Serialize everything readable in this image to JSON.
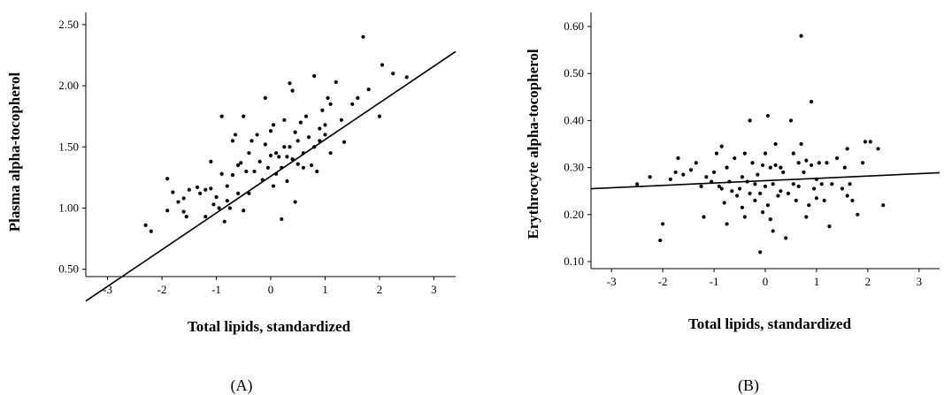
{
  "chart_data": [
    {
      "type": "scatter",
      "panel_label": "(A)",
      "xlabel": "Total lipids, standardized",
      "ylabel": "Plasma alpha-tocopherol",
      "xlim": [
        -3.4,
        3.4
      ],
      "ylim": [
        0.44,
        2.6
      ],
      "xticks": [
        -3,
        -2,
        -1,
        0,
        1,
        2,
        3
      ],
      "xtick_labels": [
        "-3",
        "-2",
        "-1",
        "0",
        "1",
        "2",
        "3"
      ],
      "yticks": [
        0.5,
        1.0,
        1.5,
        2.0,
        2.5
      ],
      "ytick_labels": [
        "0.50",
        "1.00",
        "1.50",
        "2.00",
        "2.50"
      ],
      "grid": false,
      "fit_line": {
        "slope": 0.3,
        "intercept": 1.26
      },
      "points": [
        [
          -2.3,
          0.86
        ],
        [
          -2.2,
          0.81
        ],
        [
          -1.9,
          0.98
        ],
        [
          -1.9,
          1.24
        ],
        [
          -1.8,
          1.13
        ],
        [
          -1.7,
          1.05
        ],
        [
          -1.6,
          0.97
        ],
        [
          -1.6,
          1.08
        ],
        [
          -1.55,
          0.93
        ],
        [
          -1.5,
          1.15
        ],
        [
          -1.35,
          1.17
        ],
        [
          -1.3,
          1.12
        ],
        [
          -1.2,
          1.15
        ],
        [
          -1.2,
          0.93
        ],
        [
          -1.1,
          1.38
        ],
        [
          -1.1,
          1.16
        ],
        [
          -1.05,
          1.03
        ],
        [
          -1.0,
          1.09
        ],
        [
          -0.95,
          1.0
        ],
        [
          -0.9,
          1.75
        ],
        [
          -0.9,
          1.28
        ],
        [
          -0.85,
          0.89
        ],
        [
          -0.8,
          1.06
        ],
        [
          -0.8,
          1.18
        ],
        [
          -0.75,
          1.0
        ],
        [
          -0.7,
          1.55
        ],
        [
          -0.7,
          1.27
        ],
        [
          -0.65,
          1.6
        ],
        [
          -0.6,
          1.12
        ],
        [
          -0.6,
          1.35
        ],
        [
          -0.55,
          1.37
        ],
        [
          -0.5,
          0.98
        ],
        [
          -0.5,
          1.75
        ],
        [
          -0.45,
          1.3
        ],
        [
          -0.4,
          1.45
        ],
        [
          -0.4,
          1.12
        ],
        [
          -0.35,
          1.55
        ],
        [
          -0.3,
          1.3
        ],
        [
          -0.25,
          1.6
        ],
        [
          -0.2,
          1.38
        ],
        [
          -0.15,
          1.23
        ],
        [
          -0.1,
          1.9
        ],
        [
          -0.1,
          1.52
        ],
        [
          -0.05,
          1.33
        ],
        [
          0.0,
          1.63
        ],
        [
          0.0,
          1.43
        ],
        [
          0.05,
          1.18
        ],
        [
          0.05,
          1.68
        ],
        [
          0.1,
          1.45
        ],
        [
          0.1,
          1.28
        ],
        [
          0.15,
          1.42
        ],
        [
          0.2,
          1.33
        ],
        [
          0.2,
          0.91
        ],
        [
          0.25,
          1.5
        ],
        [
          0.25,
          1.72
        ],
        [
          0.3,
          1.22
        ],
        [
          0.3,
          1.42
        ],
        [
          0.35,
          2.02
        ],
        [
          0.35,
          1.5
        ],
        [
          0.4,
          1.96
        ],
        [
          0.4,
          1.4
        ],
        [
          0.45,
          1.05
        ],
        [
          0.45,
          1.62
        ],
        [
          0.5,
          1.36
        ],
        [
          0.5,
          1.55
        ],
        [
          0.55,
          1.7
        ],
        [
          0.6,
          1.45
        ],
        [
          0.6,
          1.33
        ],
        [
          0.65,
          1.75
        ],
        [
          0.7,
          1.58
        ],
        [
          0.75,
          1.35
        ],
        [
          0.8,
          1.5
        ],
        [
          0.8,
          2.08
        ],
        [
          0.85,
          1.3
        ],
        [
          0.9,
          1.65
        ],
        [
          0.9,
          1.55
        ],
        [
          0.95,
          1.8
        ],
        [
          1.0,
          1.68
        ],
        [
          1.0,
          1.6
        ],
        [
          1.05,
          1.9
        ],
        [
          1.1,
          1.45
        ],
        [
          1.1,
          1.85
        ],
        [
          1.2,
          2.03
        ],
        [
          1.3,
          1.72
        ],
        [
          1.35,
          1.54
        ],
        [
          1.5,
          1.85
        ],
        [
          1.6,
          1.9
        ],
        [
          1.7,
          2.4
        ],
        [
          1.8,
          1.97
        ],
        [
          2.0,
          1.75
        ],
        [
          2.05,
          2.17
        ],
        [
          2.25,
          2.1
        ],
        [
          2.5,
          2.07
        ]
      ]
    },
    {
      "type": "scatter",
      "panel_label": "(B)",
      "xlabel": "Total lipids, standardized",
      "ylabel": "Erythrocyte alpha-tocopherol",
      "xlim": [
        -3.4,
        3.4
      ],
      "ylim": [
        0.085,
        0.63
      ],
      "xticks": [
        -3,
        -2,
        -1,
        0,
        1,
        2,
        3
      ],
      "xtick_labels": [
        "-3",
        "-2",
        "-1",
        "0",
        "1",
        "2",
        "3"
      ],
      "yticks": [
        0.1,
        0.2,
        0.3,
        0.4,
        0.5,
        0.6
      ],
      "ytick_labels": [
        "0.10",
        "0.20",
        "0.30",
        "0.40",
        "0.50",
        "0.60"
      ],
      "grid": false,
      "fit_line": {
        "slope": 0.005,
        "intercept": 0.272
      },
      "points": [
        [
          -2.5,
          0.265
        ],
        [
          -2.25,
          0.28
        ],
        [
          -2.05,
          0.145
        ],
        [
          -2.0,
          0.18
        ],
        [
          -1.85,
          0.275
        ],
        [
          -1.75,
          0.29
        ],
        [
          -1.7,
          0.32
        ],
        [
          -1.6,
          0.285
        ],
        [
          -1.45,
          0.295
        ],
        [
          -1.35,
          0.31
        ],
        [
          -1.25,
          0.26
        ],
        [
          -1.2,
          0.195
        ],
        [
          -1.15,
          0.28
        ],
        [
          -1.05,
          0.27
        ],
        [
          -1.0,
          0.29
        ],
        [
          -0.95,
          0.33
        ],
        [
          -0.9,
          0.26
        ],
        [
          -0.85,
          0.345
        ],
        [
          -0.85,
          0.255
        ],
        [
          -0.8,
          0.225
        ],
        [
          -0.75,
          0.3
        ],
        [
          -0.75,
          0.18
        ],
        [
          -0.7,
          0.27
        ],
        [
          -0.65,
          0.25
        ],
        [
          -0.6,
          0.32
        ],
        [
          -0.55,
          0.24
        ],
        [
          -0.5,
          0.255
        ],
        [
          -0.45,
          0.28
        ],
        [
          -0.45,
          0.215
        ],
        [
          -0.4,
          0.33
        ],
        [
          -0.4,
          0.195
        ],
        [
          -0.35,
          0.27
        ],
        [
          -0.3,
          0.4
        ],
        [
          -0.3,
          0.245
        ],
        [
          -0.25,
          0.31
        ],
        [
          -0.2,
          0.265
        ],
        [
          -0.2,
          0.23
        ],
        [
          -0.15,
          0.285
        ],
        [
          -0.1,
          0.245
        ],
        [
          -0.1,
          0.12
        ],
        [
          -0.05,
          0.305
        ],
        [
          -0.05,
          0.205
        ],
        [
          0.0,
          0.33
        ],
        [
          0.0,
          0.26
        ],
        [
          0.05,
          0.41
        ],
        [
          0.05,
          0.22
        ],
        [
          0.1,
          0.3
        ],
        [
          0.1,
          0.19
        ],
        [
          0.15,
          0.265
        ],
        [
          0.15,
          0.165
        ],
        [
          0.2,
          0.305
        ],
        [
          0.2,
          0.35
        ],
        [
          0.25,
          0.24
        ],
        [
          0.3,
          0.25
        ],
        [
          0.3,
          0.3
        ],
        [
          0.35,
          0.29
        ],
        [
          0.4,
          0.15
        ],
        [
          0.45,
          0.245
        ],
        [
          0.5,
          0.4
        ],
        [
          0.55,
          0.33
        ],
        [
          0.55,
          0.265
        ],
        [
          0.6,
          0.23
        ],
        [
          0.65,
          0.31
        ],
        [
          0.65,
          0.26
        ],
        [
          0.7,
          0.58
        ],
        [
          0.7,
          0.35
        ],
        [
          0.75,
          0.29
        ],
        [
          0.8,
          0.315
        ],
        [
          0.8,
          0.195
        ],
        [
          0.85,
          0.22
        ],
        [
          0.9,
          0.44
        ],
        [
          0.9,
          0.305
        ],
        [
          0.95,
          0.255
        ],
        [
          1.0,
          0.235
        ],
        [
          1.0,
          0.275
        ],
        [
          1.05,
          0.31
        ],
        [
          1.1,
          0.265
        ],
        [
          1.15,
          0.23
        ],
        [
          1.2,
          0.31
        ],
        [
          1.25,
          0.175
        ],
        [
          1.3,
          0.265
        ],
        [
          1.4,
          0.32
        ],
        [
          1.5,
          0.255
        ],
        [
          1.55,
          0.3
        ],
        [
          1.6,
          0.34
        ],
        [
          1.6,
          0.24
        ],
        [
          1.65,
          0.265
        ],
        [
          1.7,
          0.23
        ],
        [
          1.8,
          0.2
        ],
        [
          1.9,
          0.31
        ],
        [
          1.95,
          0.355
        ],
        [
          2.05,
          0.355
        ],
        [
          2.2,
          0.34
        ],
        [
          2.3,
          0.22
        ]
      ]
    }
  ]
}
